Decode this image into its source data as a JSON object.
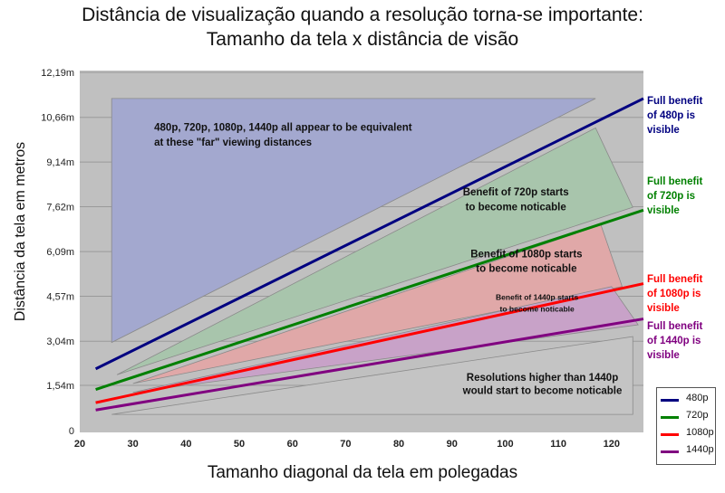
{
  "title_line1": "Distância de visualização quando a resolução torna-se importante:",
  "title_line2": "Tamanho da tela x distância de visão",
  "chart_data": {
    "type": "line",
    "xlabel": "Tamanho diagonal da tela em polegadas",
    "ylabel": "Distância da tela em metros",
    "xlim": [
      20,
      126
    ],
    "ylim": [
      0,
      12.19
    ],
    "x_ticks": [
      "20",
      "30",
      "40",
      "50",
      "60",
      "70",
      "80",
      "90",
      "100",
      "110",
      "120"
    ],
    "y_ticks": [
      {
        "v": 0,
        "label": "0"
      },
      {
        "v": 1.54,
        "label": "1,54m"
      },
      {
        "v": 3.04,
        "label": "3,04m"
      },
      {
        "v": 4.57,
        "label": "4,57m"
      },
      {
        "v": 6.09,
        "label": "6,09m"
      },
      {
        "v": 7.62,
        "label": "7,62m"
      },
      {
        "v": 9.14,
        "label": "9,14m"
      },
      {
        "v": 10.66,
        "label": "10,66m"
      },
      {
        "v": 12.19,
        "label": "12,19m"
      }
    ],
    "grid": true,
    "legend_position": "bottom-right",
    "series": [
      {
        "name": "480p",
        "color": "#000080",
        "x": [
          23,
          126
        ],
        "y": [
          2.1,
          11.3
        ],
        "label": "Full benefit\nof 480p is\nvisible"
      },
      {
        "name": "720p",
        "color": "#008000",
        "x": [
          23,
          126
        ],
        "y": [
          1.4,
          7.5
        ],
        "label": "Full benefit\nof 720p is\nvisible"
      },
      {
        "name": "1080p",
        "color": "#ff0000",
        "x": [
          23,
          126
        ],
        "y": [
          0.95,
          5.0
        ],
        "label": "Full benefit\nof 1080p is\nvisible"
      },
      {
        "name": "1440p",
        "color": "#800080",
        "x": [
          23,
          126
        ],
        "y": [
          0.7,
          3.8
        ],
        "label": "Full benefit\nof 1440p is\nvisible"
      }
    ],
    "regions": [
      {
        "name": "far",
        "fill": "#a3a8cf",
        "points": [
          [
            26,
            3.0
          ],
          [
            26,
            11.3
          ],
          [
            117,
            11.3
          ]
        ],
        "text": [
          "480p, 720p, 1080p, 1440p all appear to be equivalent",
          "at these \"far\" viewing distances"
        ],
        "text_x": 34,
        "text_y": [
          10.2,
          9.7
        ],
        "text_size": 11.5
      },
      {
        "name": "720p",
        "fill": "#a8c5ac",
        "points": [
          [
            27,
            1.9
          ],
          [
            117,
            10.3
          ],
          [
            124,
            7.6
          ]
        ],
        "text": [
          "Benefit of 720p starts",
          "to become noticable"
        ],
        "text_x": 102,
        "text_y": [
          8.0,
          7.5
        ],
        "text_size": 11.5
      },
      {
        "name": "1080p",
        "fill": "#e0a8a8",
        "points": [
          [
            30,
            1.6
          ],
          [
            118,
            7.0
          ],
          [
            122,
            4.9
          ]
        ],
        "text": [
          "Benefit of 1080p starts",
          "to become noticable"
        ],
        "text_x": 104,
        "text_y": [
          5.9,
          5.4
        ],
        "text_size": 11.5
      },
      {
        "name": "1440p",
        "fill": "#c8a2c8",
        "points": [
          [
            30,
            1.3
          ],
          [
            120,
            4.9
          ],
          [
            125,
            3.6
          ]
        ],
        "text": [
          "Benefit of 1440p starts",
          "to become noticable"
        ],
        "text_x": 106,
        "text_y": [
          4.45,
          4.05
        ],
        "text_size": 8.5
      },
      {
        "name": "higher",
        "fill": "#c4c4c4",
        "points": [
          [
            26,
            0.55
          ],
          [
            26,
            0.55
          ],
          [
            124,
            3.2
          ],
          [
            124,
            0.55
          ]
        ],
        "text": [
          "Resolutions higher than 1440p",
          "would start to become noticable"
        ],
        "text_x": 107,
        "text_y": [
          1.7,
          1.25
        ],
        "text_size": 11.5
      }
    ]
  }
}
